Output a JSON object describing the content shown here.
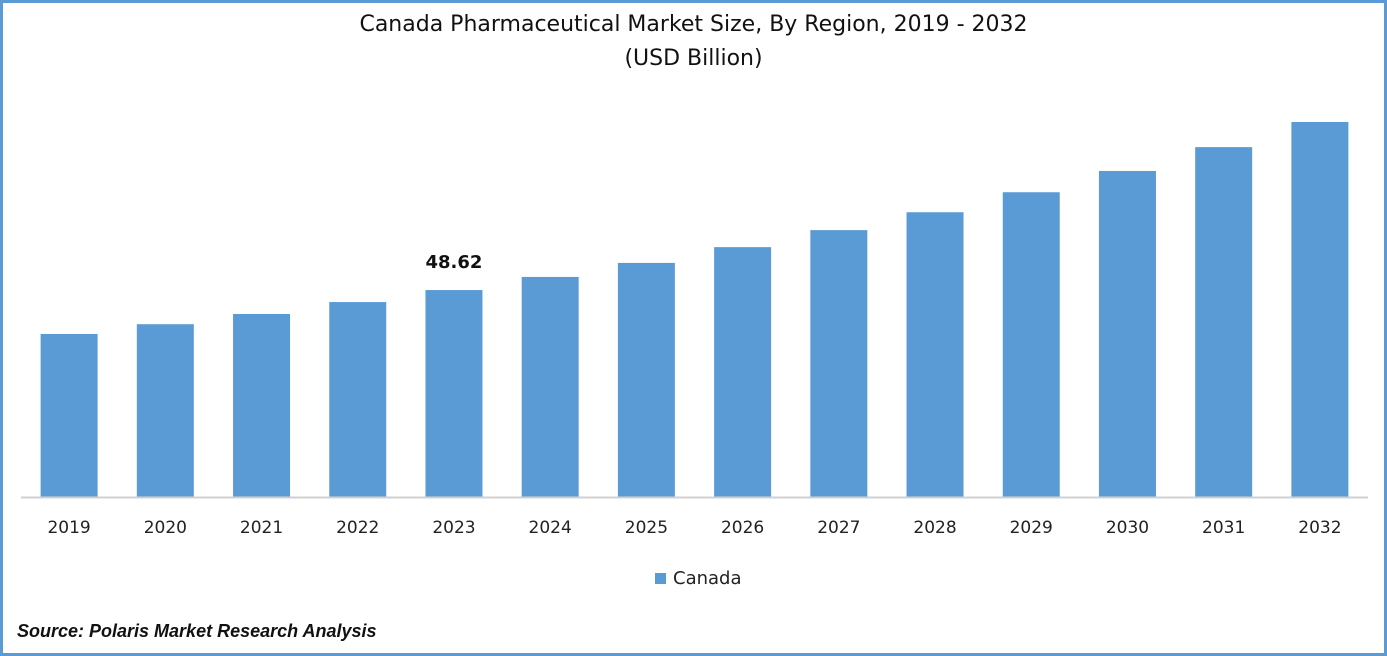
{
  "chart_data": {
    "type": "bar",
    "title": "Canada Pharmaceutical Market Size, By Region, 2019 - 2032",
    "subtitle": "(USD Billion)",
    "categories": [
      "2019",
      "2020",
      "2021",
      "2022",
      "2023",
      "2024",
      "2025",
      "2026",
      "2027",
      "2028",
      "2029",
      "2030",
      "2031",
      "2032"
    ],
    "series": [
      {
        "name": "Canada",
        "color": "#5b9bd5",
        "values": [
          38.3,
          40.6,
          43.0,
          45.8,
          48.62,
          51.7,
          55.0,
          58.7,
          62.7,
          66.9,
          71.6,
          76.6,
          82.2,
          88.1
        ]
      }
    ],
    "data_labels": [
      {
        "category": "2023",
        "text": "48.62"
      }
    ],
    "ylim": [
      0,
      88.1
    ],
    "y_axis_visible": false,
    "grid": false,
    "legend_position": "bottom"
  },
  "source": "Source: Polaris Market Research Analysis",
  "frame_color": "#5b9bd5"
}
